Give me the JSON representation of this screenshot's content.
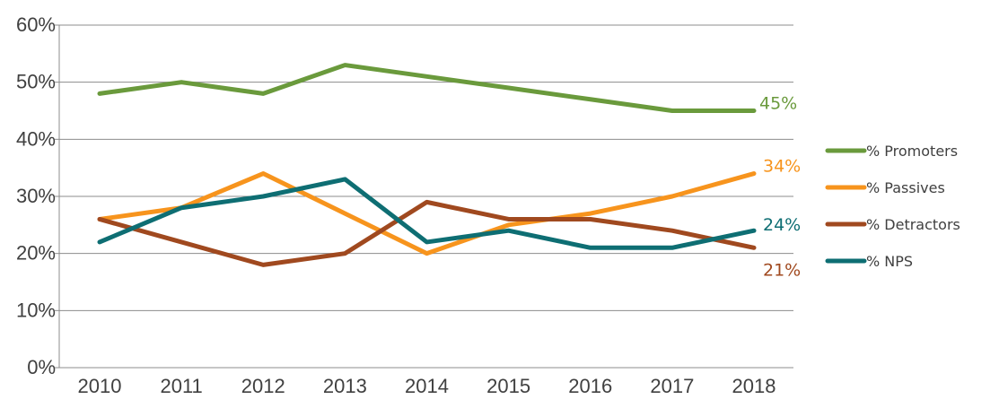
{
  "chart_data": {
    "type": "line",
    "title": "",
    "xlabel": "",
    "ylabel": "",
    "categories": [
      "2010",
      "2011",
      "2012",
      "2013",
      "2014",
      "2015",
      "2016",
      "2017",
      "2018"
    ],
    "ylim": [
      0,
      60
    ],
    "y_ticks": [
      "0%",
      "10%",
      "20%",
      "30%",
      "40%",
      "50%",
      "60%"
    ],
    "grid": true,
    "legend_position": "right",
    "series": [
      {
        "name": "% Promoters",
        "color": "#6a9a3c",
        "values": [
          48,
          50,
          48,
          53,
          51,
          49,
          47,
          45,
          45
        ],
        "end_label": "45%"
      },
      {
        "name": "% Passives",
        "color": "#f7941d",
        "values": [
          26,
          28,
          34,
          27,
          20,
          25,
          27,
          30,
          34
        ],
        "end_label": "34%"
      },
      {
        "name": "% Detractors",
        "color": "#a0491f",
        "values": [
          26,
          22,
          18,
          20,
          29,
          26,
          26,
          24,
          21
        ],
        "end_label": "21%"
      },
      {
        "name": "% NPS",
        "color": "#0e6e73",
        "values": [
          22,
          28,
          30,
          33,
          22,
          24,
          21,
          21,
          24
        ],
        "end_label": "24%"
      }
    ]
  }
}
